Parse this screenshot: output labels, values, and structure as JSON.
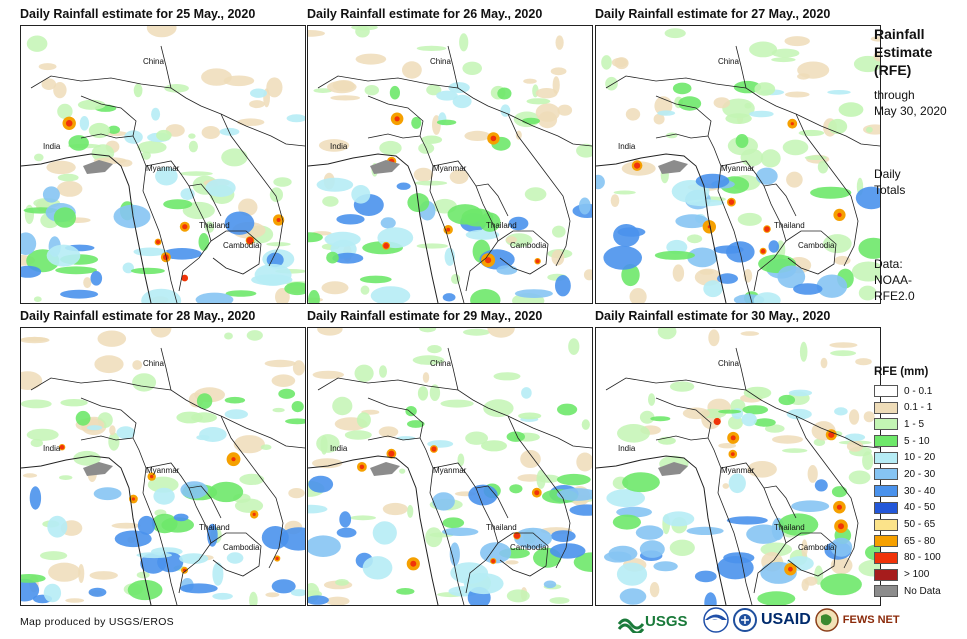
{
  "panels": [
    {
      "title": "Daily Rainfall estimate for 25 May., 2020",
      "seed": 25
    },
    {
      "title": "Daily Rainfall estimate for 26 May., 2020",
      "seed": 26
    },
    {
      "title": "Daily Rainfall estimate for 27 May., 2020",
      "seed": 27
    },
    {
      "title": "Daily Rainfall estimate for 28 May., 2020",
      "seed": 28
    },
    {
      "title": "Daily Rainfall estimate for 29 May., 2020",
      "seed": 29
    },
    {
      "title": "Daily Rainfall estimate for 30 May., 2020",
      "seed": 30
    }
  ],
  "map_labels": {
    "china": "China",
    "india": "India",
    "myanmar": "Myanmar",
    "thailand": "Thailand",
    "cambodia": "Cambodia"
  },
  "sidebar": {
    "title_lines": [
      "Rainfall",
      "Estimate",
      "(RFE)"
    ],
    "through_lines": [
      "through",
      "May 30, 2020"
    ],
    "totals_lines": [
      "Daily",
      "Totals"
    ],
    "data_lines": [
      "Data:",
      "NOAA-",
      "RFE2.0"
    ]
  },
  "legend": {
    "title": "RFE (mm)",
    "items": [
      {
        "label": "0 - 0.1",
        "color": "#ffffff"
      },
      {
        "label": "0.1 - 1",
        "color": "#eedcb8"
      },
      {
        "label": "1 - 5",
        "color": "#c3f5b4"
      },
      {
        "label": "5 - 10",
        "color": "#6ee86a"
      },
      {
        "label": "10 - 20",
        "color": "#b6ecf5"
      },
      {
        "label": "20 - 30",
        "color": "#86c4f3"
      },
      {
        "label": "30 - 40",
        "color": "#4a92ec"
      },
      {
        "label": "40 - 50",
        "color": "#2357d9"
      },
      {
        "label": "50 - 65",
        "color": "#fbe38a"
      },
      {
        "label": "65 - 80",
        "color": "#f5a000"
      },
      {
        "label": "80 - 100",
        "color": "#f0330a"
      },
      {
        "label": "> 100",
        "color": "#a61c1c"
      },
      {
        "label": "No Data",
        "color": "#8c8c8c"
      }
    ]
  },
  "credit": "Map produced by USGS/EROS",
  "logos": {
    "usgs": "USGS",
    "usaid": "USAID",
    "fewsnet": "FEWS NET"
  }
}
